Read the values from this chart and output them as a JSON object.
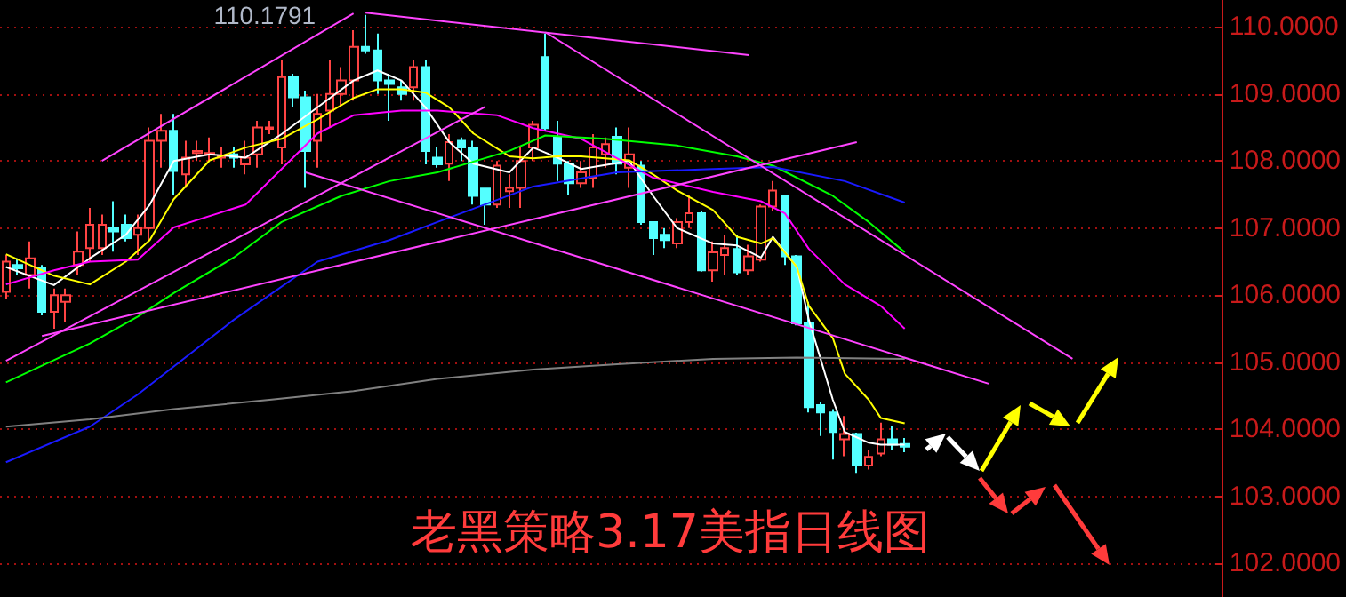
{
  "chart_data": {
    "type": "candlestick",
    "title": "老黑策略3.17美指日线图",
    "categories": [
      null,
      null,
      null,
      null,
      null,
      null,
      null,
      null,
      null,
      null,
      null,
      null,
      null,
      null,
      null,
      null,
      null,
      null,
      null,
      null,
      null,
      null,
      null,
      null,
      null,
      null,
      null,
      null,
      null,
      null,
      null,
      null,
      null,
      null,
      null,
      null,
      null,
      null,
      null,
      null,
      null,
      null,
      null,
      null,
      null,
      null,
      null,
      null,
      null,
      null,
      null,
      null,
      null,
      null,
      null,
      null,
      null,
      null,
      null,
      null,
      null,
      null,
      null,
      null,
      null,
      null,
      null,
      null,
      null,
      null,
      null,
      null,
      null,
      null,
      null,
      null,
      null,
      null,
      null,
      null,
      null,
      null,
      null,
      null,
      null,
      null,
      null,
      null,
      null,
      null,
      null,
      null,
      null,
      null,
      null,
      null,
      null,
      null,
      null,
      null,
      null,
      null
    ],
    "ohlc": [
      [
        106.05,
        106.6,
        105.95,
        106.5
      ],
      [
        106.45,
        106.55,
        106.3,
        106.4
      ],
      [
        106.3,
        106.8,
        106.1,
        106.55
      ],
      [
        106.4,
        106.45,
        105.7,
        105.75
      ],
      [
        105.75,
        106.1,
        105.5,
        106.0
      ],
      [
        105.9,
        106.1,
        105.6,
        106.0
      ],
      [
        106.45,
        106.95,
        106.3,
        106.65
      ],
      [
        106.7,
        107.3,
        106.5,
        107.05
      ],
      [
        106.7,
        107.2,
        106.6,
        107.05
      ],
      [
        107.0,
        107.4,
        106.65,
        106.95
      ],
      [
        107.05,
        107.2,
        106.8,
        106.85
      ],
      [
        106.9,
        107.2,
        106.6,
        107.0
      ],
      [
        107.0,
        108.5,
        106.8,
        108.3
      ],
      [
        108.3,
        108.7,
        107.9,
        108.45
      ],
      [
        108.45,
        108.7,
        107.5,
        107.85
      ],
      [
        107.8,
        108.3,
        107.6,
        108.05
      ],
      [
        108.12,
        108.3,
        108.0,
        108.15
      ],
      [
        108.1,
        108.35,
        108.0,
        108.12
      ],
      [
        108.05,
        108.2,
        107.9,
        108.08
      ],
      [
        108.1,
        108.2,
        107.9,
        108.05
      ],
      [
        107.95,
        108.3,
        107.8,
        108.05
      ],
      [
        108.1,
        108.6,
        107.9,
        108.5
      ],
      [
        108.48,
        108.6,
        108.4,
        108.5
      ],
      [
        108.2,
        109.5,
        107.95,
        109.25
      ],
      [
        109.25,
        109.3,
        108.8,
        108.95
      ],
      [
        108.95,
        109.05,
        107.6,
        108.15
      ],
      [
        108.3,
        109.0,
        107.9,
        108.7
      ],
      [
        108.75,
        109.5,
        108.5,
        109.0
      ],
      [
        109.0,
        109.4,
        108.8,
        109.2
      ],
      [
        109.2,
        109.95,
        108.9,
        109.7
      ],
      [
        109.7,
        110.1791,
        109.6,
        109.65
      ],
      [
        109.65,
        109.9,
        109.0,
        109.2
      ],
      [
        109.2,
        109.3,
        108.6,
        109.15
      ],
      [
        109.1,
        109.2,
        108.9,
        109.0
      ],
      [
        109.1,
        109.5,
        108.9,
        109.4
      ],
      [
        109.4,
        109.5,
        107.95,
        108.15
      ],
      [
        108.05,
        108.2,
        107.9,
        107.95
      ],
      [
        107.96,
        108.4,
        107.7,
        108.28
      ],
      [
        108.3,
        108.35,
        108.0,
        108.2
      ],
      [
        108.2,
        108.3,
        107.35,
        107.48
      ],
      [
        107.59,
        107.6,
        107.05,
        107.35
      ],
      [
        107.35,
        108.0,
        107.3,
        107.93
      ],
      [
        107.55,
        107.8,
        107.3,
        107.6
      ],
      [
        107.6,
        108.2,
        107.3,
        108.0
      ],
      [
        108.2,
        108.6,
        108.0,
        108.54
      ],
      [
        109.55,
        109.9,
        108.45,
        108.49
      ],
      [
        108.36,
        108.6,
        107.7,
        107.96
      ],
      [
        107.96,
        108.0,
        107.5,
        107.67
      ],
      [
        107.67,
        108.0,
        107.6,
        107.83
      ],
      [
        107.75,
        108.4,
        107.6,
        108.2
      ],
      [
        108.1,
        108.35,
        107.9,
        108.25
      ],
      [
        108.36,
        108.5,
        107.8,
        107.96
      ],
      [
        107.9,
        108.5,
        107.6,
        108.1
      ],
      [
        107.93,
        108.0,
        107.05,
        107.09
      ],
      [
        107.09,
        107.1,
        106.6,
        106.85
      ],
      [
        106.9,
        107.0,
        106.7,
        106.82
      ],
      [
        106.77,
        107.15,
        106.7,
        107.09
      ],
      [
        107.09,
        107.5,
        107.0,
        107.22
      ],
      [
        107.22,
        107.25,
        106.35,
        106.37
      ],
      [
        106.37,
        106.8,
        106.2,
        106.64
      ],
      [
        106.6,
        106.9,
        106.3,
        106.7
      ],
      [
        106.69,
        106.9,
        106.3,
        106.34
      ],
      [
        106.37,
        106.75,
        106.3,
        106.58
      ],
      [
        106.53,
        107.35,
        106.5,
        107.32
      ],
      [
        107.32,
        107.7,
        107.25,
        107.56
      ],
      [
        107.48,
        107.5,
        106.45,
        106.58
      ],
      [
        106.58,
        106.6,
        105.55,
        105.58
      ],
      [
        105.58,
        105.9,
        104.25,
        104.33
      ],
      [
        104.36,
        104.4,
        103.9,
        104.25
      ],
      [
        104.25,
        104.3,
        103.55,
        103.96
      ],
      [
        103.85,
        104.2,
        103.6,
        103.93
      ],
      [
        103.93,
        103.95,
        103.35,
        103.46
      ],
      [
        103.46,
        103.7,
        103.4,
        103.59
      ],
      [
        103.64,
        104.1,
        103.6,
        103.85
      ],
      [
        103.85,
        104.05,
        103.7,
        103.77
      ],
      [
        103.78,
        103.87,
        103.66,
        103.74
      ],
      null,
      null,
      null,
      null,
      null,
      null,
      null,
      null,
      null,
      null,
      null,
      null,
      null,
      null,
      null,
      null,
      null,
      null,
      null,
      null,
      null,
      null,
      null,
      null,
      null,
      null
    ],
    "colors": [
      "#ff4444",
      "#54ffff",
      "#ff4444",
      "#54ffff",
      "#ff4444",
      "#ff4444",
      "#ff4444",
      "#ff4444",
      "#ff4444",
      "#54ffff",
      "#54ffff",
      "#ff4444",
      "#ff4444",
      "#ff4444",
      "#54ffff",
      "#ff4444",
      "#ff4444",
      "#ff4444",
      "#ff4444",
      "#54ffff",
      "#ff4444",
      "#ff4444",
      "#ff4444",
      "#ff4444",
      "#54ffff",
      "#54ffff",
      "#ff4444",
      "#ff4444",
      "#ff4444",
      "#ff4444",
      "#54ffff",
      "#54ffff",
      "#54ffff",
      "#54ffff",
      "#ff4444",
      "#54ffff",
      "#54ffff",
      "#ff4444",
      "#54ffff",
      "#54ffff",
      "#54ffff",
      "#ff4444",
      "#ff4444",
      "#ff4444",
      "#ff4444",
      "#54ffff",
      "#54ffff",
      "#54ffff",
      "#ff4444",
      "#ff4444",
      "#ff4444",
      "#54ffff",
      "#ff4444",
      "#54ffff",
      "#54ffff",
      "#54ffff",
      "#ff4444",
      "#ff4444",
      "#54ffff",
      "#ff4444",
      "#ff4444",
      "#54ffff",
      "#ff4444",
      "#ff4444",
      "#ff4444",
      "#54ffff",
      "#54ffff",
      "#54ffff",
      "#54ffff",
      "#54ffff",
      "#ff4444",
      "#54ffff",
      "#ff4444",
      "#ff4444",
      "#54ffff",
      "#54ffff",
      null,
      null,
      null,
      null,
      null,
      null,
      null,
      null,
      null,
      null,
      null,
      null,
      null,
      null,
      null,
      null,
      null,
      null,
      null,
      null,
      null,
      null,
      null,
      null,
      null,
      null
    ],
    "series": [
      {
        "type": "line",
        "color": "#ffffff",
        "values": [
          106.42,
          null,
          null,
          null,
          106.15,
          null,
          null,
          106.55,
          null,
          null,
          106.9,
          null,
          107.35,
          null,
          108.0,
          null,
          null,
          108.1,
          null,
          null,
          108.05,
          null,
          null,
          108.4,
          null,
          null,
          108.8,
          null,
          null,
          109.2,
          null,
          109.35,
          null,
          109.2,
          null,
          108.8,
          null,
          108.28,
          null,
          107.96,
          null,
          null,
          107.83,
          null,
          108.2,
          null,
          108.05,
          null,
          107.88,
          null,
          null,
          null,
          108.0,
          null,
          107.48,
          null,
          107.0,
          null,
          null,
          106.77,
          null,
          106.74,
          null,
          106.56,
          106.87,
          null,
          106.42,
          105.63,
          null,
          104.44,
          103.96,
          null,
          103.8,
          103.77,
          null,
          103.77,
          null,
          null,
          null,
          null,
          null,
          null,
          null,
          null,
          null,
          null,
          null,
          null,
          null,
          null,
          null,
          null,
          null,
          null,
          null,
          null,
          null,
          null,
          null,
          null,
          null,
          null
        ]
      },
      {
        "type": "line",
        "color": "#ffff00",
        "values": [
          106.61,
          null,
          null,
          null,
          106.29,
          null,
          null,
          106.16,
          null,
          null,
          106.5,
          null,
          106.82,
          null,
          107.43,
          null,
          null,
          108.01,
          null,
          null,
          108.2,
          null,
          null,
          108.33,
          null,
          null,
          108.62,
          null,
          null,
          108.94,
          null,
          109.07,
          null,
          109.07,
          null,
          109.02,
          null,
          108.8,
          null,
          108.41,
          null,
          null,
          108.07,
          null,
          108.04,
          null,
          108.07,
          null,
          108.07,
          null,
          null,
          null,
          108.01,
          null,
          107.8,
          null,
          107.56,
          null,
          null,
          107.27,
          null,
          106.87,
          null,
          106.77,
          106.85,
          null,
          106.42,
          105.84,
          null,
          105.36,
          104.83,
          null,
          104.44,
          104.17,
          null,
          104.09,
          null,
          null,
          null,
          null,
          null,
          null,
          null,
          null,
          null,
          null,
          null,
          null,
          null,
          null,
          null,
          null,
          null,
          null,
          null,
          null,
          null,
          null,
          null,
          null,
          null,
          null
        ]
      },
      {
        "type": "line",
        "color": "#ff00ff",
        "values": [
          106.16,
          null,
          null,
          null,
          106.37,
          null,
          null,
          106.5,
          null,
          null,
          null,
          106.53,
          null,
          null,
          107.01,
          null,
          null,
          null,
          null,
          null,
          107.35,
          null,
          null,
          107.88,
          null,
          null,
          108.41,
          null,
          null,
          108.68,
          null,
          null,
          null,
          108.75,
          null,
          null,
          108.75,
          null,
          null,
          null,
          null,
          108.68,
          null,
          null,
          108.49,
          null,
          null,
          null,
          108.33,
          null,
          null,
          null,
          null,
          null,
          107.75,
          null,
          null,
          null,
          null,
          107.54,
          null,
          null,
          null,
          107.4,
          null,
          107.22,
          null,
          106.69,
          null,
          null,
          106.16,
          null,
          null,
          105.84,
          null,
          105.5,
          null,
          null,
          null,
          null,
          null,
          null,
          null,
          null,
          null,
          null,
          null,
          null,
          null,
          null,
          null,
          null,
          null,
          null,
          null,
          null,
          null,
          null,
          null,
          null,
          null,
          null
        ]
      },
      {
        "type": "line",
        "color": "#00ff00",
        "values": [
          104.7,
          null,
          null,
          null,
          null,
          null,
          null,
          105.28,
          null,
          null,
          null,
          105.68,
          null,
          null,
          106.03,
          null,
          null,
          null,
          null,
          106.56,
          null,
          null,
          null,
          107.09,
          null,
          null,
          null,
          null,
          107.48,
          null,
          null,
          null,
          107.7,
          null,
          null,
          null,
          107.83,
          null,
          null,
          null,
          null,
          null,
          108.15,
          null,
          null,
          108.38,
          null,
          null,
          null,
          null,
          108.33,
          null,
          null,
          null,
          null,
          null,
          108.23,
          null,
          null,
          null,
          null,
          108.07,
          null,
          null,
          107.93,
          null,
          null,
          null,
          null,
          107.48,
          null,
          null,
          107.09,
          null,
          null,
          106.64,
          null,
          null,
          null,
          null,
          null,
          null,
          null,
          null,
          null,
          null,
          null,
          null,
          null,
          null,
          null,
          null,
          null,
          null,
          null,
          null,
          null,
          null,
          null,
          null,
          null,
          null
        ]
      },
      {
        "type": "line",
        "color": "#1a1aff",
        "values": [
          103.51,
          null,
          null,
          null,
          null,
          null,
          null,
          104.04,
          null,
          null,
          null,
          104.52,
          null,
          null,
          null,
          null,
          null,
          null,
          null,
          105.63,
          null,
          null,
          null,
          null,
          null,
          null,
          106.5,
          null,
          null,
          null,
          null,
          null,
          106.82,
          null,
          null,
          null,
          107.09,
          null,
          null,
          null,
          null,
          null,
          null,
          null,
          107.62,
          null,
          null,
          null,
          null,
          null,
          null,
          107.83,
          null,
          null,
          null,
          null,
          null,
          null,
          null,
          107.88,
          null,
          null,
          null,
          null,
          107.91,
          null,
          null,
          null,
          null,
          null,
          107.7,
          null,
          null,
          null,
          null,
          107.38,
          null,
          null,
          null,
          null,
          null,
          null,
          null,
          null,
          null,
          null,
          null,
          null,
          null,
          null,
          null,
          null,
          null,
          null,
          null,
          null,
          null,
          null,
          null,
          null,
          null,
          null
        ]
      },
      {
        "type": "line",
        "color": "#808080",
        "values": [
          104.04,
          null,
          null,
          null,
          null,
          null,
          null,
          104.15,
          null,
          null,
          null,
          null,
          null,
          null,
          104.3,
          null,
          null,
          null,
          null,
          null,
          null,
          null,
          104.44,
          null,
          null,
          null,
          null,
          null,
          null,
          104.57,
          null,
          null,
          null,
          null,
          null,
          null,
          104.75,
          null,
          null,
          null,
          null,
          null,
          null,
          null,
          104.89,
          null,
          null,
          null,
          null,
          null,
          null,
          104.97,
          null,
          null,
          null,
          null,
          null,
          null,
          null,
          105.05,
          null,
          null,
          null,
          null,
          null,
          null,
          105.07,
          null,
          null,
          null,
          null,
          null,
          null,
          null,
          null,
          105.05,
          null,
          null,
          null,
          null,
          null,
          null,
          null,
          null,
          null,
          null,
          null,
          null,
          null,
          null,
          null,
          null,
          null,
          null,
          null,
          null,
          null,
          null,
          null,
          null,
          null,
          null
        ]
      },
      {
        "type": "line",
        "color": "#ff44ff",
        "values": [
          null,
          null,
          null,
          null,
          null,
          null,
          null,
          null,
          108.0,
          null,
          null,
          null,
          null,
          null,
          null,
          null,
          null,
          null,
          null,
          null,
          null,
          null,
          null,
          null,
          null,
          null,
          null,
          null,
          null,
          110.2,
          null,
          null,
          null,
          null,
          null,
          null,
          null,
          null,
          null,
          null,
          null,
          null,
          null,
          null,
          null,
          null,
          null,
          null,
          null,
          null,
          null,
          null,
          null,
          null,
          null,
          null,
          null,
          null,
          null,
          null,
          null,
          null,
          null,
          null,
          null,
          null,
          null,
          null,
          null,
          null,
          null,
          null,
          null,
          null,
          null,
          null,
          null,
          null,
          null,
          null,
          null,
          null,
          null,
          null,
          null,
          null,
          null,
          null,
          null,
          null,
          null,
          null,
          null,
          null,
          null,
          null,
          null,
          null,
          null,
          null,
          null,
          null
        ]
      },
      {
        "type": "line",
        "color": "#ff44ff",
        "values": [
          null,
          null,
          null,
          null,
          null,
          null,
          null,
          null,
          null,
          null,
          null,
          null,
          null,
          null,
          null,
          null,
          null,
          null,
          null,
          null,
          null,
          null,
          null,
          null,
          null,
          null,
          null,
          null,
          null,
          null,
          110.21,
          null,
          null,
          null,
          null,
          null,
          null,
          null,
          null,
          null,
          null,
          null,
          null,
          null,
          null,
          null,
          null,
          null,
          null,
          null,
          null,
          null,
          null,
          null,
          null,
          null,
          null,
          null,
          null,
          null,
          null,
          null,
          109.58,
          null,
          null,
          null,
          null,
          null,
          null,
          null,
          null,
          null,
          null,
          null,
          null,
          null,
          null,
          null,
          null,
          null,
          null,
          null,
          null,
          null,
          null,
          null,
          null,
          null,
          null,
          null,
          null,
          null,
          null,
          null,
          null,
          null,
          null,
          null,
          null,
          null,
          null,
          null
        ]
      },
      {
        "type": "line",
        "color": "#ff44ff",
        "values": [
          null,
          null,
          null,
          null,
          null,
          null,
          null,
          null,
          null,
          null,
          null,
          null,
          null,
          null,
          null,
          null,
          null,
          null,
          null,
          null,
          null,
          null,
          null,
          null,
          null,
          null,
          null,
          null,
          null,
          null,
          null,
          null,
          null,
          null,
          null,
          null,
          null,
          null,
          null,
          null,
          null,
          null,
          null,
          null,
          null,
          109.92,
          null,
          null,
          null,
          null,
          null,
          null,
          null,
          null,
          null,
          null,
          null,
          null,
          null,
          null,
          null,
          null,
          null,
          null,
          null,
          null,
          null,
          null,
          null,
          null,
          null,
          null,
          null,
          null,
          null,
          null,
          null,
          null,
          null,
          null,
          null,
          null,
          null,
          null,
          null,
          null,
          null,
          null,
          null,
          105.05,
          null,
          null,
          null,
          null,
          null,
          null,
          null,
          null,
          null,
          null,
          null,
          null
        ]
      },
      {
        "type": "line",
        "color": "#ff44ff",
        "values": [
          105.02,
          null,
          null,
          null,
          null,
          null,
          null,
          null,
          null,
          null,
          null,
          null,
          null,
          null,
          null,
          null,
          null,
          null,
          null,
          null,
          null,
          null,
          null,
          null,
          null,
          null,
          null,
          null,
          null,
          null,
          null,
          null,
          null,
          null,
          null,
          null,
          null,
          null,
          null,
          null,
          108.81,
          null,
          null,
          null,
          null,
          null,
          null,
          null,
          null,
          null,
          null,
          null,
          null,
          null,
          null,
          null,
          null,
          null,
          null,
          null,
          null,
          null,
          null,
          null,
          null,
          null,
          null,
          null,
          null,
          null,
          null,
          null,
          null,
          null,
          null,
          null,
          null,
          null,
          null,
          null,
          null,
          null,
          null,
          null,
          null,
          null,
          null,
          null,
          null,
          null,
          null,
          null,
          null,
          null,
          null,
          null,
          null,
          null,
          null,
          null,
          null,
          null
        ]
      },
      {
        "type": "line",
        "color": "#ff44ff",
        "values": [
          null,
          null,
          null,
          105.39,
          null,
          null,
          null,
          null,
          null,
          null,
          null,
          null,
          null,
          null,
          null,
          null,
          null,
          null,
          null,
          null,
          null,
          null,
          null,
          null,
          null,
          null,
          null,
          null,
          null,
          null,
          null,
          null,
          null,
          null,
          null,
          null,
          null,
          null,
          null,
          null,
          null,
          null,
          null,
          null,
          null,
          null,
          null,
          null,
          null,
          null,
          null,
          null,
          null,
          null,
          null,
          null,
          null,
          null,
          null,
          null,
          null,
          null,
          null,
          null,
          null,
          null,
          null,
          null,
          null,
          null,
          null,
          108.28,
          null,
          null,
          null,
          null,
          null,
          null,
          null,
          null,
          null,
          null,
          null,
          null,
          null,
          null,
          null,
          null,
          null,
          null,
          null,
          null,
          null,
          null,
          null,
          null,
          null,
          null,
          null,
          null,
          null,
          null
        ]
      },
      {
        "type": "line",
        "color": "#ff44ff",
        "values": [
          null,
          null,
          null,
          null,
          null,
          null,
          null,
          null,
          null,
          null,
          null,
          null,
          null,
          null,
          null,
          null,
          null,
          null,
          null,
          null,
          null,
          null,
          null,
          null,
          null,
          107.83,
          null,
          null,
          null,
          null,
          null,
          null,
          null,
          null,
          null,
          null,
          null,
          null,
          null,
          null,
          null,
          null,
          null,
          null,
          null,
          null,
          null,
          null,
          null,
          null,
          null,
          null,
          null,
          null,
          null,
          null,
          null,
          null,
          null,
          null,
          null,
          null,
          null,
          null,
          null,
          null,
          null,
          null,
          null,
          null,
          null,
          null,
          null,
          null,
          null,
          null,
          null,
          null,
          null,
          null,
          null,
          null,
          104.68,
          null,
          null,
          null,
          null,
          null,
          null,
          null,
          null,
          null,
          null,
          null,
          null,
          null,
          null,
          null,
          null,
          null,
          null,
          null
        ]
      }
    ],
    "annotations": [
      "110.1791"
    ],
    "ylim": [
      101.5,
      110.4
    ],
    "yticks": [
      {
        "value": 102,
        "label": "102.0000"
      },
      {
        "value": 103,
        "label": "103.0000"
      },
      {
        "value": 104,
        "label": "104.0000"
      },
      {
        "value": 105,
        "label": "105.0000"
      },
      {
        "value": 106,
        "label": "106.0000"
      },
      {
        "value": 107,
        "label": "107.0000"
      },
      {
        "value": 108,
        "label": "108.0000"
      },
      {
        "value": 109,
        "label": "109.0000"
      },
      {
        "value": 110,
        "label": "110.0000"
      }
    ],
    "tick_labels": "y",
    "grid": "y"
  }
}
